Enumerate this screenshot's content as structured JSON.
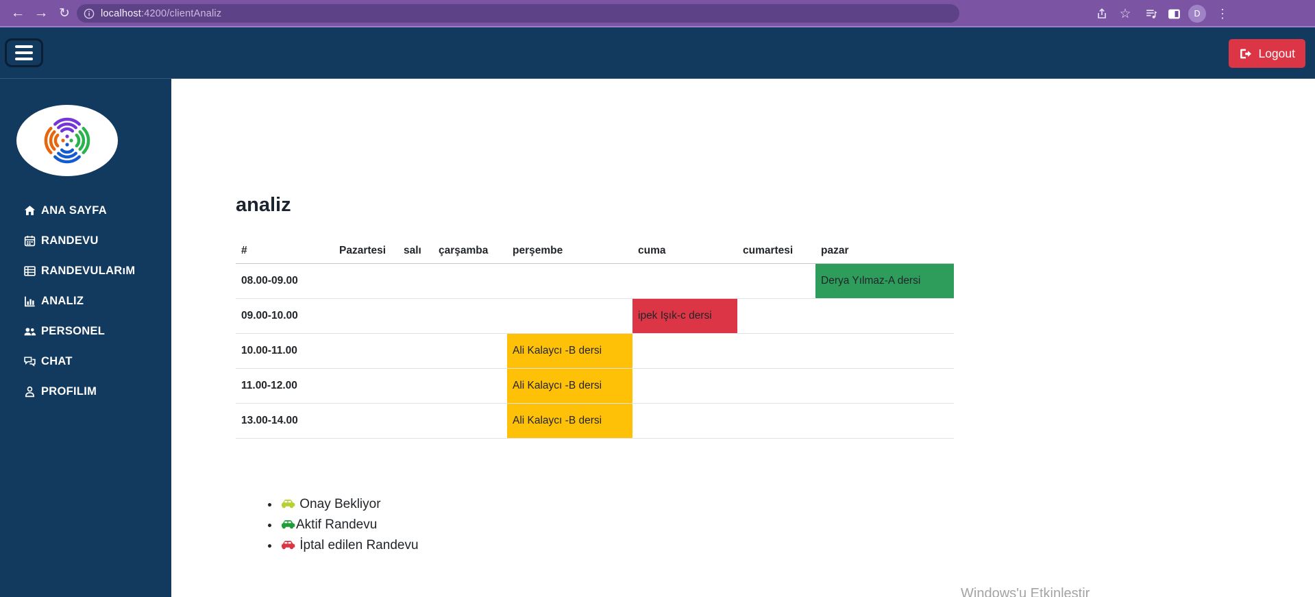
{
  "browser": {
    "url_host": "localhost",
    "url_rest": ":4200/clientAnaliz",
    "avatar_letter": "D"
  },
  "navbar": {
    "logout_label": "Logout"
  },
  "sidebar": {
    "items": [
      {
        "label": "ANA SAYFA",
        "icon": "home"
      },
      {
        "label": "RANDEVU",
        "icon": "calendar"
      },
      {
        "label": "RANDEVULARıM",
        "icon": "list"
      },
      {
        "label": "ANALIZ",
        "icon": "chart"
      },
      {
        "label": "PERSONEL",
        "icon": "users"
      },
      {
        "label": "CHAT",
        "icon": "chat"
      },
      {
        "label": "PROFILIM",
        "icon": "person"
      }
    ]
  },
  "main": {
    "title": "analiz",
    "table": {
      "headers": [
        "#",
        "Pazartesi",
        "salı",
        "çarşamba",
        "perşembe",
        "cuma",
        "cumartesi",
        "pazar"
      ],
      "rows": [
        {
          "time": "08.00-09.00",
          "cells": [
            null,
            null,
            null,
            null,
            null,
            null,
            {
              "text": "Derya Yılmaz-A dersi",
              "status": "active"
            }
          ]
        },
        {
          "time": "09.00-10.00",
          "cells": [
            null,
            null,
            null,
            null,
            {
              "text": "ipek Işık-c dersi",
              "status": "cancelled"
            },
            null,
            null
          ]
        },
        {
          "time": "10.00-11.00",
          "cells": [
            null,
            null,
            null,
            {
              "text": "Ali Kalaycı -B dersi",
              "status": "pending"
            },
            null,
            null,
            null
          ]
        },
        {
          "time": "11.00-12.00",
          "cells": [
            null,
            null,
            null,
            {
              "text": "Ali Kalaycı -B dersi",
              "status": "pending"
            },
            null,
            null,
            null
          ]
        },
        {
          "time": "13.00-14.00",
          "cells": [
            null,
            null,
            null,
            {
              "text": "Ali Kalaycı -B dersi",
              "status": "pending"
            },
            null,
            null,
            null
          ]
        }
      ]
    },
    "legend": [
      {
        "label": " Onay Bekliyor",
        "car_color": "#b9cf33"
      },
      {
        "label": "Aktif Randevu",
        "car_color": "#1e9e38"
      },
      {
        "label": " İptal edilen Randevu",
        "car_color": "#dc3545"
      }
    ],
    "watermark": "Windows'u Etkinleştir"
  },
  "colors": {
    "status_active": "#2e9d5c",
    "status_cancelled": "#dc3545",
    "status_pending": "#ffc107",
    "navy": "#12395e",
    "logout_red": "#dc3545",
    "chrome_purple": "#7b55a3"
  }
}
